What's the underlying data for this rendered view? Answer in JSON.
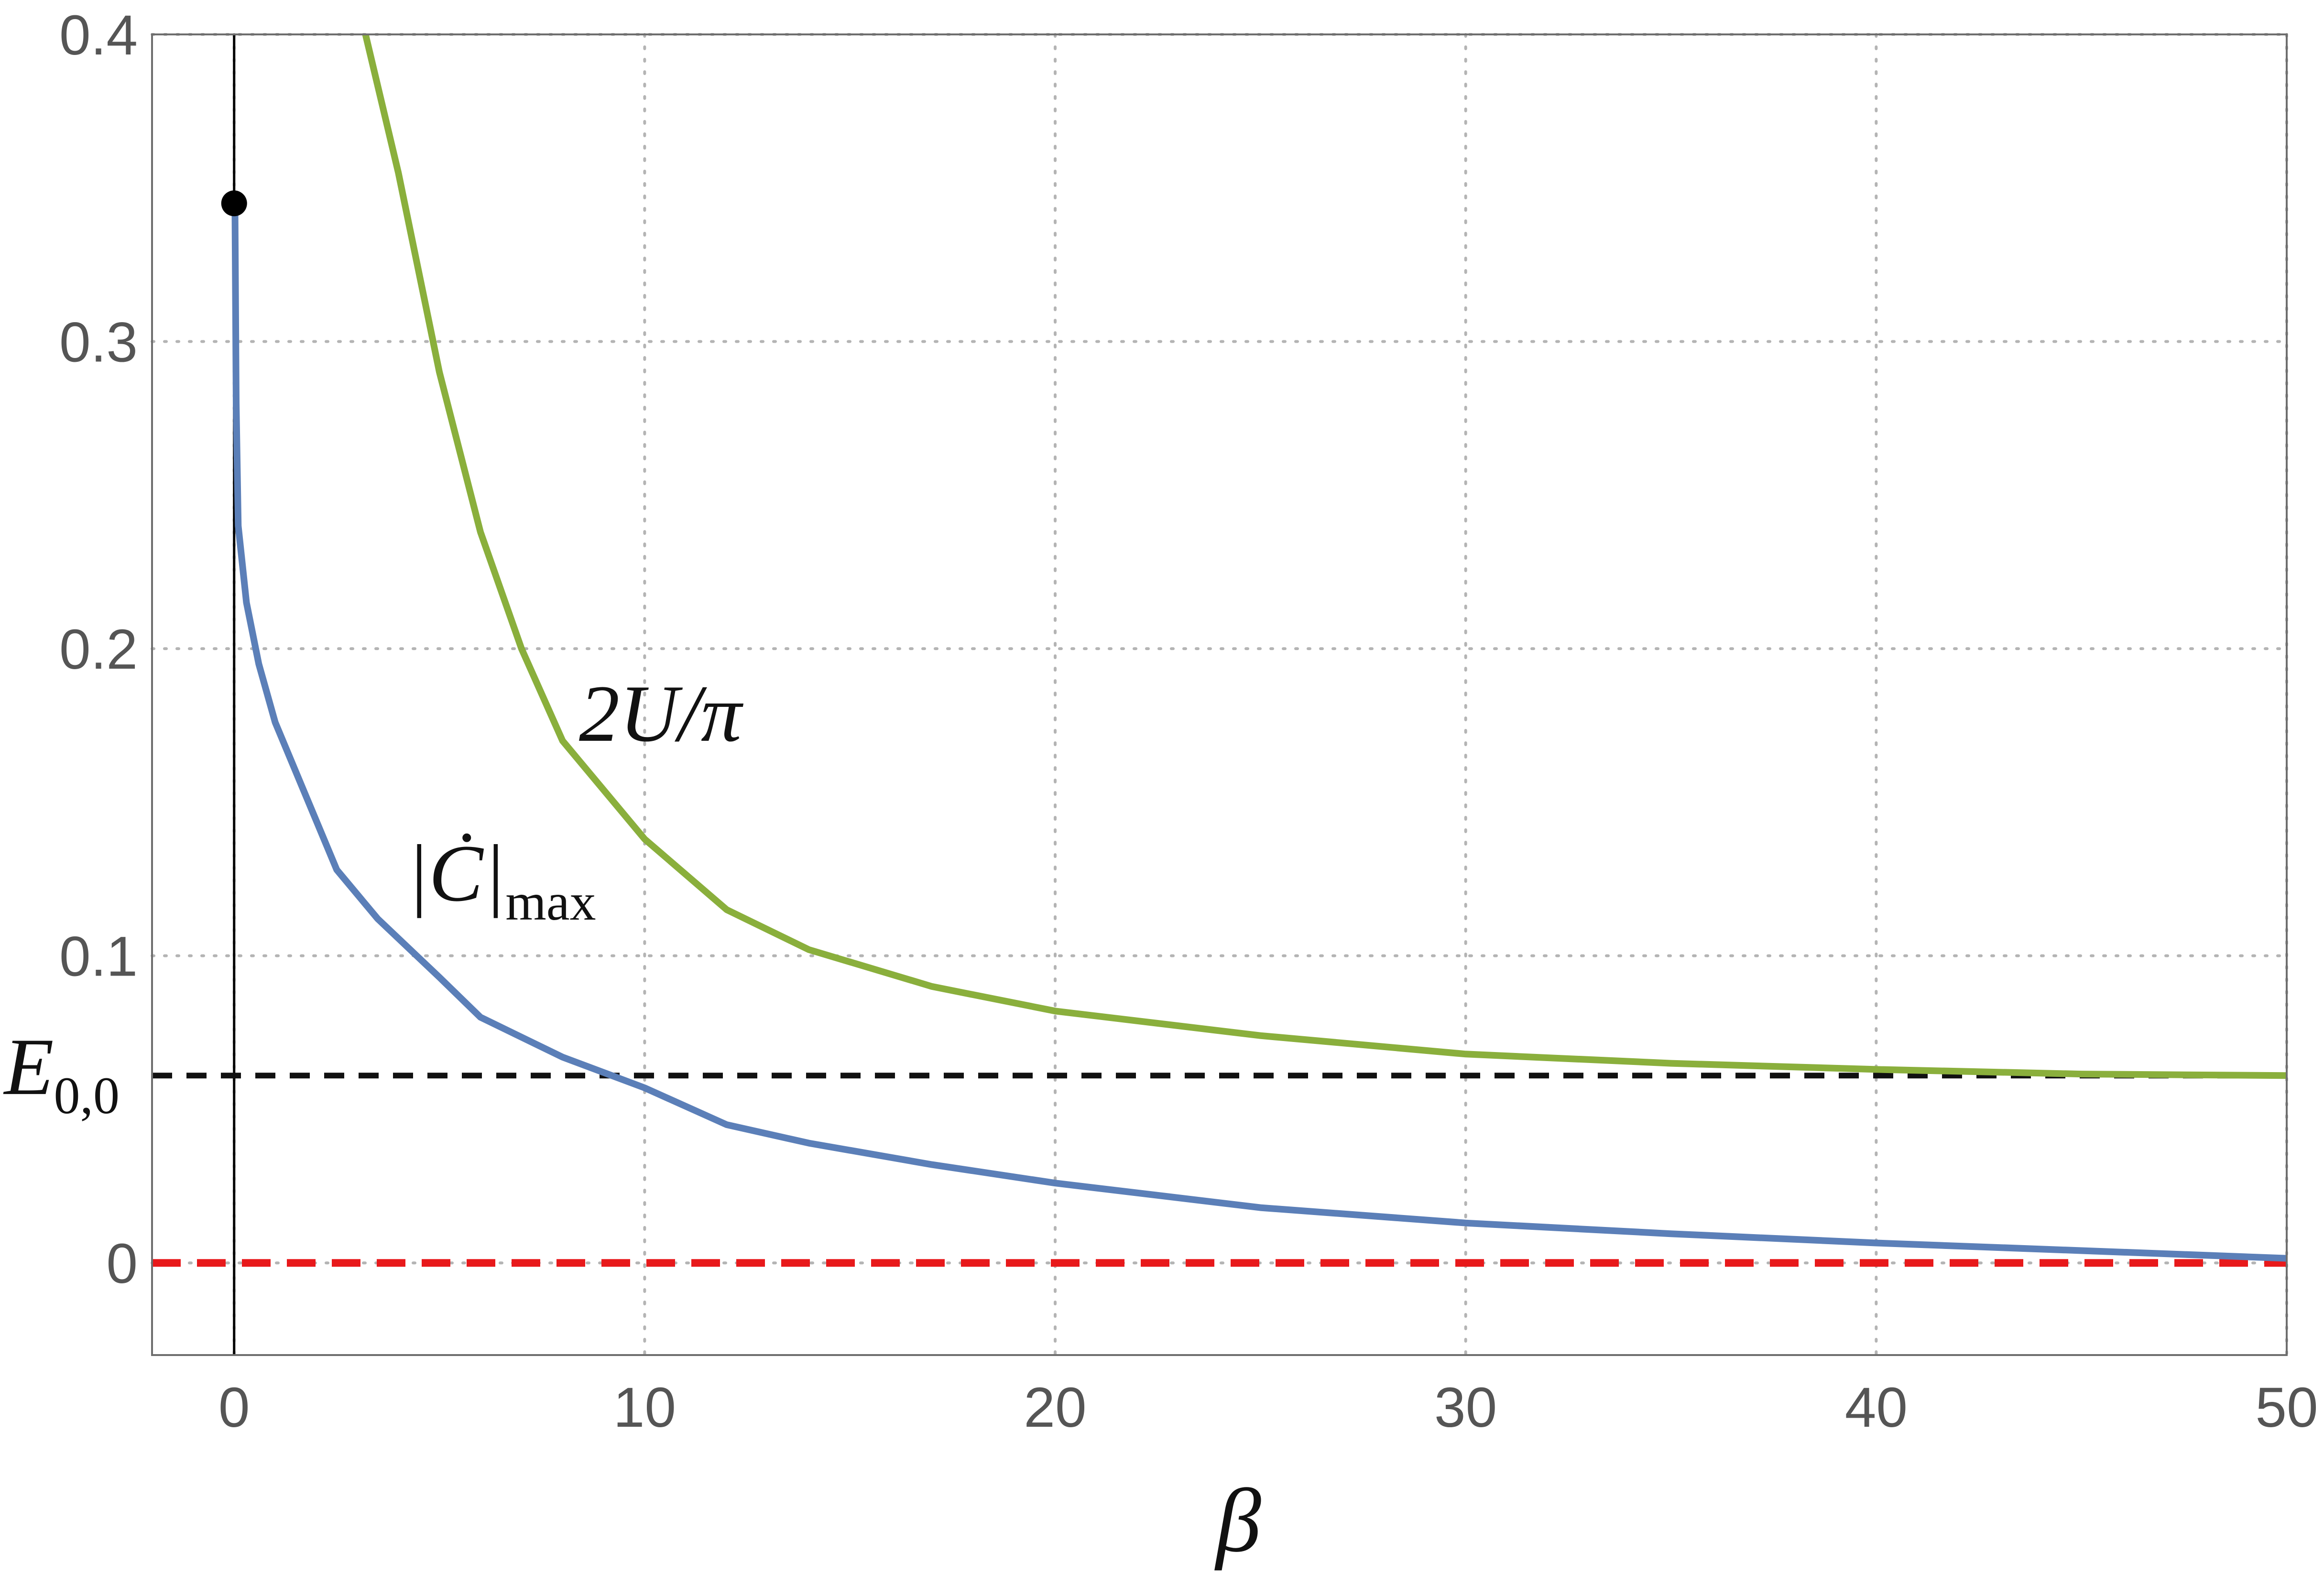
{
  "chart_data": {
    "type": "line",
    "xlabel": "β",
    "ylabel": "",
    "xlim": [
      -2,
      50
    ],
    "ylim": [
      -0.03,
      0.4
    ],
    "xticks": [
      0,
      10,
      20,
      30,
      40,
      50
    ],
    "xtick_labels": [
      "0",
      "10",
      "20",
      "30",
      "40",
      "50"
    ],
    "yticks": [
      0,
      0.1,
      0.2,
      0.3,
      0.4
    ],
    "ytick_labels": [
      "0",
      "0.1",
      "0.2",
      "0.3",
      "0.4"
    ],
    "grid": true,
    "series": [
      {
        "name": "|Ċ|max",
        "color": "#5b7fb8",
        "style": "solid",
        "points": [
          [
            0.02,
            0.345
          ],
          [
            0.05,
            0.28
          ],
          [
            0.1,
            0.24
          ],
          [
            0.3,
            0.215
          ],
          [
            0.6,
            0.195
          ],
          [
            1,
            0.176
          ],
          [
            1.5,
            0.16
          ],
          [
            2.5,
            0.128
          ],
          [
            3.5,
            0.112
          ],
          [
            5,
            0.093
          ],
          [
            6,
            0.08
          ],
          [
            8,
            0.067
          ],
          [
            10,
            0.057
          ],
          [
            12,
            0.045
          ],
          [
            14,
            0.039
          ],
          [
            17,
            0.032
          ],
          [
            20,
            0.026
          ],
          [
            25,
            0.018
          ],
          [
            30,
            0.013
          ],
          [
            35,
            0.0095
          ],
          [
            40,
            0.0065
          ],
          [
            45,
            0.004
          ],
          [
            50,
            0.0015
          ]
        ]
      },
      {
        "name": "2U/π",
        "color": "#8aaf3c",
        "style": "solid",
        "points": [
          [
            3.2,
            0.4
          ],
          [
            4,
            0.355
          ],
          [
            5,
            0.29
          ],
          [
            6,
            0.238
          ],
          [
            7,
            0.2
          ],
          [
            8,
            0.17
          ],
          [
            10,
            0.138
          ],
          [
            12,
            0.115
          ],
          [
            14,
            0.102
          ],
          [
            17,
            0.09
          ],
          [
            20,
            0.082
          ],
          [
            25,
            0.074
          ],
          [
            30,
            0.068
          ],
          [
            35,
            0.065
          ],
          [
            40,
            0.063
          ],
          [
            45,
            0.0615
          ],
          [
            50,
            0.061
          ]
        ]
      },
      {
        "name": "E0,0",
        "color": "#111111",
        "style": "dashed",
        "points": [
          [
            -2,
            0.061
          ],
          [
            50,
            0.061
          ]
        ]
      },
      {
        "name": "",
        "color": "#e8191b",
        "style": "dashed",
        "points": [
          [
            -2,
            0
          ],
          [
            50,
            0
          ]
        ]
      }
    ],
    "marker": {
      "x": 0,
      "y": 0.345,
      "color": "#000000"
    },
    "vline": {
      "x": 0,
      "color": "#000000"
    },
    "annotations": [
      {
        "id": "cdot",
        "main": "|Ċ|",
        "sub": "max",
        "x": 4.2,
        "y": 0.118
      },
      {
        "id": "twoU",
        "main": "2U/π",
        "x": 8.4,
        "y": 0.17
      },
      {
        "id": "e00",
        "main": "E",
        "sub": "0,0",
        "x": -2.05,
        "y": 0.055
      }
    ]
  }
}
